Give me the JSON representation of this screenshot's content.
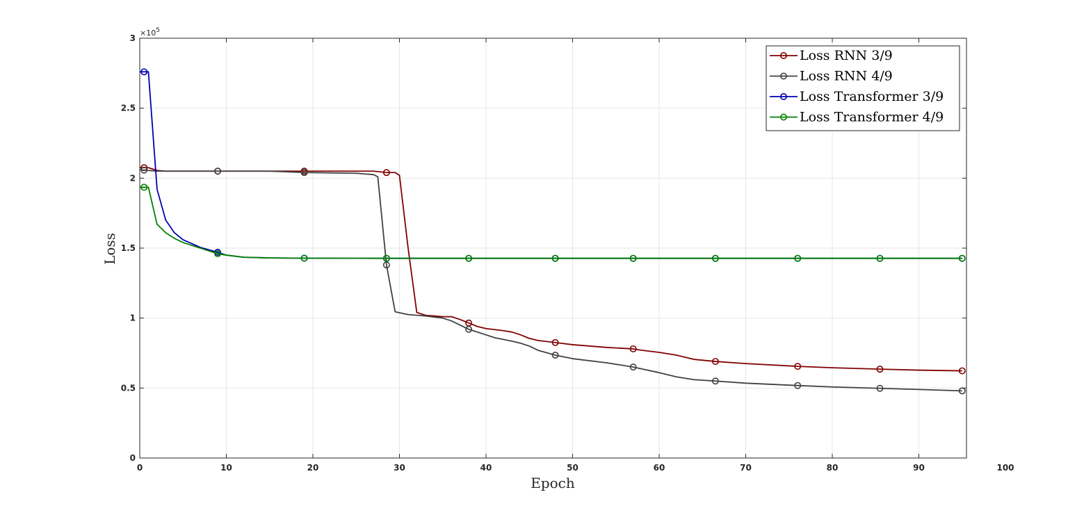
{
  "chart_data": {
    "type": "line",
    "xlabel": "Epoch",
    "ylabel": "Loss",
    "xlim": [
      0,
      100
    ],
    "xlim_display": [
      0,
      95.5
    ],
    "ylim": [
      0,
      300000
    ],
    "y_exponent_label": "×10",
    "y_exponent_power": "5",
    "xticks": [
      0,
      10,
      20,
      30,
      40,
      50,
      60,
      70,
      80,
      90,
      100
    ],
    "xtick_labels": [
      "0",
      "10",
      "20",
      "30",
      "40",
      "50",
      "60",
      "70",
      "80",
      "90",
      "100"
    ],
    "yticks": [
      0,
      50000,
      100000,
      150000,
      200000,
      250000,
      300000
    ],
    "ytick_labels": [
      "0",
      "0.5",
      "1",
      "1.5",
      "2",
      "2.5",
      "3"
    ],
    "grid": true,
    "legend_position": "top-right",
    "series": [
      {
        "name": "Loss RNN 3/9",
        "color": "#800000",
        "points": [
          [
            0,
            207500
          ],
          [
            1,
            207500
          ],
          [
            2,
            205500
          ],
          [
            3,
            205000
          ],
          [
            5,
            205000
          ],
          [
            9,
            205000
          ],
          [
            15,
            205000
          ],
          [
            19,
            205000
          ],
          [
            25,
            205000
          ],
          [
            27,
            205000
          ],
          [
            28.5,
            204000
          ],
          [
            29.5,
            204000
          ],
          [
            30,
            202000
          ],
          [
            31,
            150000
          ],
          [
            32,
            104000
          ],
          [
            33,
            102000
          ],
          [
            35,
            101000
          ],
          [
            36,
            101000
          ],
          [
            37,
            99000
          ],
          [
            38,
            96500
          ],
          [
            39,
            94000
          ],
          [
            40,
            92500
          ],
          [
            42,
            91000
          ],
          [
            43,
            90000
          ],
          [
            44,
            88000
          ],
          [
            45,
            85500
          ],
          [
            46,
            84000
          ],
          [
            48,
            82500
          ],
          [
            50,
            81000
          ],
          [
            54,
            79000
          ],
          [
            57,
            78000
          ],
          [
            58,
            77000
          ],
          [
            60,
            75500
          ],
          [
            62,
            73500
          ],
          [
            64,
            70500
          ],
          [
            66.5,
            69000
          ],
          [
            70,
            67500
          ],
          [
            76,
            65500
          ],
          [
            80,
            64500
          ],
          [
            85.5,
            63500
          ],
          [
            90,
            62800
          ],
          [
            95,
            62300
          ]
        ],
        "marker_x": [
          0.5,
          9,
          19,
          28.5,
          38,
          48,
          57,
          66.5,
          76,
          85.5,
          95
        ]
      },
      {
        "name": "Loss RNN 4/9",
        "color": "#404040",
        "points": [
          [
            0,
            206000
          ],
          [
            2,
            205000
          ],
          [
            5,
            205000
          ],
          [
            9,
            205000
          ],
          [
            15,
            205000
          ],
          [
            19,
            204000
          ],
          [
            25,
            203500
          ],
          [
            27,
            202500
          ],
          [
            27.5,
            201000
          ],
          [
            28.5,
            138000
          ],
          [
            29.5,
            104500
          ],
          [
            31,
            102500
          ],
          [
            33,
            101500
          ],
          [
            35,
            100000
          ],
          [
            36,
            98000
          ],
          [
            37,
            95000
          ],
          [
            38,
            92000
          ],
          [
            40,
            88000
          ],
          [
            41,
            86000
          ],
          [
            43,
            83500
          ],
          [
            44,
            82000
          ],
          [
            45,
            80000
          ],
          [
            46,
            77000
          ],
          [
            48,
            73500
          ],
          [
            50,
            71000
          ],
          [
            54,
            68000
          ],
          [
            57,
            65000
          ],
          [
            60,
            61000
          ],
          [
            62,
            58000
          ],
          [
            64,
            56000
          ],
          [
            66.5,
            55000
          ],
          [
            70,
            53500
          ],
          [
            76,
            51800
          ],
          [
            80,
            50800
          ],
          [
            85.5,
            49800
          ],
          [
            90,
            49000
          ],
          [
            95,
            48000
          ]
        ],
        "marker_x": [
          0.5,
          9,
          19,
          28.5,
          38,
          48,
          57,
          66.5,
          76,
          85.5,
          95
        ]
      },
      {
        "name": "Loss Transformer 3/9",
        "color": "#0000b0",
        "points": [
          [
            0,
            276000
          ],
          [
            1,
            276000
          ],
          [
            2,
            192000
          ],
          [
            3,
            170000
          ],
          [
            4,
            161000
          ],
          [
            5,
            156000
          ],
          [
            7,
            150500
          ],
          [
            9,
            147000
          ],
          [
            10,
            145000
          ],
          [
            12,
            143500
          ],
          [
            15,
            143000
          ],
          [
            19,
            142800
          ],
          [
            28.5,
            142700
          ],
          [
            38,
            142700
          ],
          [
            48,
            142700
          ],
          [
            57,
            142700
          ],
          [
            66.5,
            142700
          ],
          [
            76,
            142700
          ],
          [
            85.5,
            142700
          ],
          [
            95,
            142700
          ]
        ],
        "marker_x": [
          0.5,
          9,
          19,
          28.5,
          38,
          48,
          57,
          66.5,
          76,
          85.5,
          95
        ]
      },
      {
        "name": "Loss Transformer 4/9",
        "color": "#008000",
        "points": [
          [
            0,
            193500
          ],
          [
            1,
            193500
          ],
          [
            2,
            167000
          ],
          [
            3,
            161000
          ],
          [
            4,
            157000
          ],
          [
            5,
            154000
          ],
          [
            7,
            150000
          ],
          [
            9,
            146000
          ],
          [
            10,
            145000
          ],
          [
            12,
            143500
          ],
          [
            15,
            143000
          ],
          [
            19,
            142800
          ],
          [
            28.5,
            142700
          ],
          [
            38,
            142700
          ],
          [
            48,
            142700
          ],
          [
            57,
            142700
          ],
          [
            66.5,
            142700
          ],
          [
            76,
            142700
          ],
          [
            85.5,
            142700
          ],
          [
            95,
            142700
          ]
        ],
        "marker_x": [
          0.5,
          9,
          19,
          28.5,
          38,
          48,
          57,
          66.5,
          76,
          85.5,
          95
        ]
      }
    ]
  }
}
